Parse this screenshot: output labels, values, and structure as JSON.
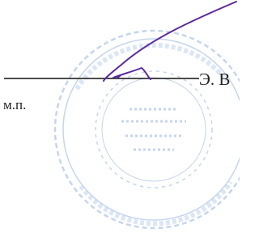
{
  "document": {
    "signer": "Э. В",
    "seal_label": "м.п."
  }
}
